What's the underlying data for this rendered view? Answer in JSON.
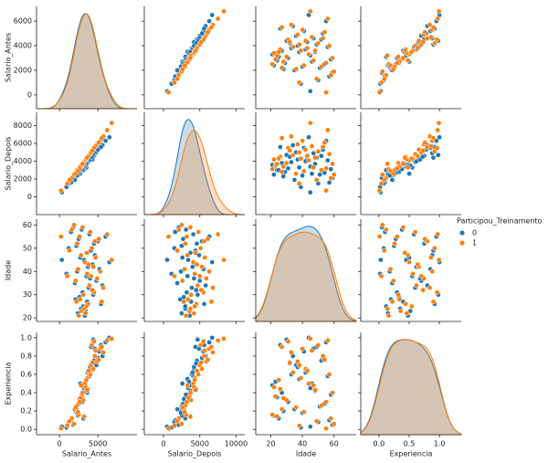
{
  "chart_data": {
    "type": "pairplot",
    "variables": [
      "Salario_Antes",
      "Salario_Depois",
      "Idade",
      "Experiencia"
    ],
    "legend_title": "Participou_Treinamento",
    "axes": [
      {
        "xlim": [
          -3000,
          10100
        ],
        "ylim": [
          -1125,
          7200
        ],
        "xticks": [
          0,
          5000
        ],
        "yticks": [
          0,
          2000,
          4000,
          6000
        ]
      },
      {
        "xlim": [
          -2650,
          11200
        ],
        "ylim": [
          -2000,
          9500
        ],
        "xticks": [
          0,
          5000,
          10000
        ],
        "yticks": [
          0,
          2000,
          4000,
          6000,
          8000
        ]
      },
      {
        "xlim": [
          10.5,
          74
        ],
        "ylim": [
          18.5,
          62.5
        ],
        "xticks": [
          20,
          40,
          60
        ],
        "yticks": [
          20,
          30,
          40,
          50,
          60
        ]
      },
      {
        "xlim": [
          -0.3,
          1.36
        ],
        "ylim": [
          -0.058,
          1.058
        ],
        "xticks": [
          {
            "value": 0,
            "label": "0.0"
          },
          {
            "value": 0.5,
            "label": "0.5"
          },
          {
            "value": 1,
            "label": "1.0"
          }
        ],
        "yticks": [
          {
            "value": 0,
            "label": "0.0"
          },
          {
            "value": 0.2,
            "label": "0.2"
          },
          {
            "value": 0.4,
            "label": "0.4"
          },
          {
            "value": 0.6,
            "label": "0.6"
          },
          {
            "value": 0.8,
            "label": "0.8"
          },
          {
            "value": 1,
            "label": "1.0"
          }
        ]
      }
    ],
    "series": [
      {
        "name": "0",
        "color": "#1f77b4",
        "values": [
          [
            3200,
            3400,
            45,
            0.45
          ],
          [
            2100,
            2300,
            28,
            0.2
          ],
          [
            4500,
            4600,
            52,
            0.75
          ],
          [
            3800,
            3900,
            33,
            0.6
          ],
          [
            1500,
            1600,
            57,
            0.1
          ],
          [
            2800,
            3000,
            24,
            0.35
          ],
          [
            5200,
            5500,
            41,
            0.85
          ],
          [
            3500,
            3300,
            38,
            0.55
          ],
          [
            4100,
            4400,
            49,
            0.9
          ],
          [
            2400,
            2500,
            22,
            0.15
          ],
          [
            6000,
            6300,
            55,
            0.95
          ],
          [
            3000,
            3200,
            31,
            0.3
          ],
          [
            2700,
            2600,
            46,
            0.5
          ],
          [
            4800,
            5000,
            36,
            0.7
          ],
          [
            1800,
            2100,
            59,
            0.05
          ],
          [
            3600,
            3800,
            27,
            0.4
          ],
          [
            4300,
            4200,
            43,
            0.65
          ],
          [
            2200,
            2500,
            51,
            0.25
          ],
          [
            5600,
            5800,
            34,
            0.8
          ],
          [
            3300,
            3600,
            21,
            0.48
          ],
          [
            900,
            1100,
            39,
            0.02
          ],
          [
            3900,
            4100,
            56,
            0.58
          ],
          [
            2600,
            2800,
            29,
            0.33
          ],
          [
            4600,
            4900,
            47,
            0.88
          ],
          [
            3100,
            3000,
            25,
            0.12
          ],
          [
            5000,
            5300,
            53,
            0.78
          ],
          [
            2000,
            1900,
            35,
            0.22
          ],
          [
            3700,
            4000,
            42,
            0.62
          ],
          [
            4400,
            4700,
            30,
            0.98
          ],
          [
            2900,
            3100,
            58,
            0.38
          ],
          [
            6500,
            6700,
            44,
            1.0
          ],
          [
            3400,
            3500,
            23,
            0.52
          ],
          [
            1200,
            1500,
            50,
            0.08
          ],
          [
            4000,
            4200,
            37,
            0.68
          ],
          [
            2500,
            2700,
            54,
            0.28
          ],
          [
            5400,
            5600,
            26,
            0.92
          ],
          [
            3500,
            3700,
            48,
            0.42
          ],
          [
            4200,
            4500,
            32,
            0.72
          ],
          [
            2300,
            2400,
            40,
            0.18
          ],
          [
            300,
            500,
            45,
            0.03
          ]
        ]
      },
      {
        "name": "1",
        "color": "#ff7f0e",
        "values": [
          [
            3300,
            4100,
            44,
            0.5
          ],
          [
            2200,
            2800,
            27,
            0.22
          ],
          [
            4600,
            5600,
            53,
            0.8
          ],
          [
            3900,
            4700,
            34,
            0.62
          ],
          [
            1600,
            2100,
            58,
            0.12
          ],
          [
            2900,
            3600,
            23,
            0.36
          ],
          [
            5300,
            6300,
            40,
            0.88
          ],
          [
            3600,
            4300,
            39,
            0.56
          ],
          [
            4200,
            5100,
            50,
            0.92
          ],
          [
            2500,
            3100,
            21,
            0.16
          ],
          [
            6200,
            7500,
            56,
            0.97
          ],
          [
            3100,
            3800,
            30,
            0.32
          ],
          [
            2800,
            3300,
            47,
            0.48
          ],
          [
            4900,
            5900,
            37,
            0.74
          ],
          [
            1900,
            2500,
            60,
            0.06
          ],
          [
            3700,
            4500,
            26,
            0.44
          ],
          [
            4400,
            5300,
            42,
            0.66
          ],
          [
            2300,
            3000,
            52,
            0.26
          ],
          [
            5700,
            6800,
            33,
            0.84
          ],
          [
            3400,
            4200,
            22,
            0.46
          ],
          [
            1000,
            1500,
            38,
            0.04
          ],
          [
            4000,
            4800,
            57,
            0.6
          ],
          [
            2700,
            3400,
            28,
            0.34
          ],
          [
            4700,
            5700,
            46,
            0.86
          ],
          [
            3200,
            3700,
            24,
            0.14
          ],
          [
            5100,
            6100,
            54,
            0.76
          ],
          [
            2100,
            2600,
            36,
            0.24
          ],
          [
            3800,
            4600,
            43,
            0.64
          ],
          [
            4500,
            5500,
            31,
            0.96
          ],
          [
            3000,
            3700,
            59,
            0.4
          ],
          [
            6800,
            8300,
            45,
            0.99
          ],
          [
            3500,
            4300,
            25,
            0.54
          ],
          [
            1300,
            1900,
            49,
            0.09
          ],
          [
            4100,
            5000,
            38,
            0.7
          ],
          [
            2600,
            3200,
            55,
            0.3
          ],
          [
            5500,
            6600,
            27,
            0.9
          ],
          [
            3600,
            4400,
            48,
            0.43
          ],
          [
            4300,
            5200,
            32,
            0.73
          ],
          [
            2400,
            2900,
            41,
            0.19
          ],
          [
            200,
            700,
            55,
            0.01
          ]
        ]
      }
    ]
  }
}
